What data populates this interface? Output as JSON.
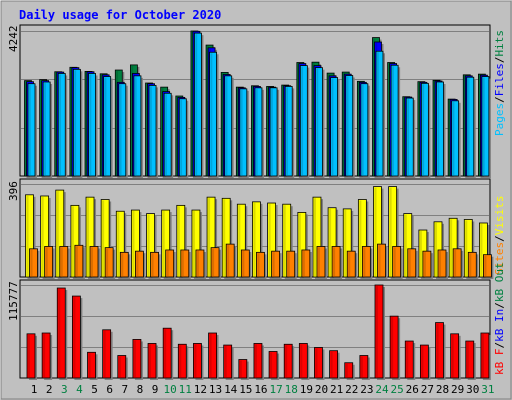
{
  "title": "Daily usage for October 2020",
  "colors": {
    "background": "#c0c0c0",
    "title": "#0000ff",
    "hits": "#008040",
    "files": "#0000ff",
    "pages": "#00c0ff",
    "visits": "#ffff00",
    "sites": "#ff8000",
    "kb_in": "#00c0ff",
    "kb_out": "#008040",
    "kb_f": "#ff0000",
    "normal_day": "#000000",
    "weekend_day": "#008040",
    "today_day": "#0000ff"
  },
  "chart_data": [
    {
      "type": "bar",
      "title": "Daily usage for October 2020",
      "panel": "hits-files-pages",
      "y_max_label": "4242",
      "ylim": [
        0,
        4242
      ],
      "legend": [
        "Pages",
        "Files",
        "Hits"
      ],
      "legend_separator": "/",
      "legend_placement": "right",
      "categories": [
        "1",
        "2",
        "3",
        "4",
        "5",
        "6",
        "7",
        "8",
        "9",
        "10",
        "11",
        "12",
        "13",
        "14",
        "15",
        "16",
        "17",
        "18",
        "19",
        "20",
        "21",
        "22",
        "23",
        "24",
        "25",
        "26",
        "27",
        "28",
        "29",
        "30",
        "31"
      ],
      "series": [
        {
          "name": "Hits",
          "values": [
            2790,
            2820,
            3050,
            3180,
            3060,
            2990,
            3100,
            3250,
            2720,
            2600,
            2340,
            4242,
            3830,
            3030,
            2600,
            2640,
            2620,
            2660,
            3320,
            3330,
            3010,
            3040,
            2770,
            4050,
            3320,
            2320,
            2760,
            2800,
            2250,
            2960,
            2980
          ]
        },
        {
          "name": "Files",
          "values": [
            2760,
            2790,
            3040,
            3170,
            3050,
            2960,
            2740,
            3000,
            2700,
            2470,
            2300,
            4232,
            3750,
            2970,
            2580,
            2620,
            2600,
            2640,
            3290,
            3230,
            2930,
            2980,
            2740,
            3920,
            3290,
            2310,
            2740,
            2780,
            2240,
            2930,
            2950
          ]
        },
        {
          "name": "Pages",
          "values": [
            2700,
            2750,
            3000,
            3120,
            3000,
            2910,
            2700,
            2930,
            2650,
            2420,
            2260,
            4180,
            3620,
            2930,
            2550,
            2580,
            2580,
            2620,
            3230,
            3170,
            2880,
            2940,
            2700,
            3650,
            3240,
            2280,
            2710,
            2750,
            2200,
            2890,
            2910
          ]
        }
      ]
    },
    {
      "type": "bar",
      "panel": "visits-sites",
      "y_max_label": "396",
      "ylim": [
        0,
        396
      ],
      "legend": [
        "Visits",
        "Sites"
      ],
      "legend_separator": "/",
      "legend_placement": "right",
      "categories": [
        "1",
        "2",
        "3",
        "4",
        "5",
        "6",
        "7",
        "8",
        "9",
        "10",
        "11",
        "12",
        "13",
        "14",
        "15",
        "16",
        "17",
        "18",
        "19",
        "20",
        "21",
        "22",
        "23",
        "24",
        "25",
        "26",
        "27",
        "28",
        "29",
        "30",
        "31"
      ],
      "series": [
        {
          "name": "Visits",
          "values": [
            350,
            345,
            370,
            305,
            340,
            330,
            280,
            285,
            270,
            285,
            305,
            285,
            340,
            335,
            310,
            320,
            315,
            310,
            275,
            340,
            295,
            290,
            330,
            385,
            385,
            270,
            200,
            235,
            250,
            245,
            230
          ]
        },
        {
          "name": "Sites",
          "values": [
            120,
            130,
            130,
            135,
            130,
            125,
            105,
            110,
            105,
            115,
            115,
            115,
            125,
            140,
            115,
            105,
            110,
            110,
            115,
            130,
            130,
            110,
            130,
            140,
            130,
            120,
            110,
            115,
            120,
            105,
            95
          ]
        }
      ]
    },
    {
      "type": "bar",
      "panel": "kbytes",
      "y_max_label": "115777",
      "ylim": [
        0,
        115777
      ],
      "legend": [
        "kB F",
        "kB In",
        "kB Out"
      ],
      "legend_separator": "/",
      "legend_placement": "right",
      "categories": [
        "1",
        "2",
        "3",
        "4",
        "5",
        "6",
        "7",
        "8",
        "9",
        "10",
        "11",
        "12",
        "13",
        "14",
        "15",
        "16",
        "17",
        "18",
        "19",
        "20",
        "21",
        "22",
        "23",
        "24",
        "25",
        "26",
        "27",
        "28",
        "29",
        "30",
        "31"
      ],
      "series": [
        {
          "name": "kB F",
          "values": [
            55000,
            56000,
            112000,
            102000,
            32000,
            60000,
            28000,
            48000,
            43000,
            62000,
            42000,
            43000,
            56000,
            41000,
            23000,
            43000,
            33000,
            42000,
            43000,
            38000,
            34000,
            19000,
            28000,
            115777,
            77000,
            46000,
            41000,
            69000,
            55000,
            46000,
            56000
          ]
        }
      ]
    }
  ],
  "day_labels": [
    {
      "label": "1",
      "type": "normal"
    },
    {
      "label": "2",
      "type": "normal"
    },
    {
      "label": "3",
      "type": "weekend"
    },
    {
      "label": "4",
      "type": "weekend"
    },
    {
      "label": "5",
      "type": "normal"
    },
    {
      "label": "6",
      "type": "normal"
    },
    {
      "label": "7",
      "type": "normal"
    },
    {
      "label": "8",
      "type": "normal"
    },
    {
      "label": "9",
      "type": "normal"
    },
    {
      "label": "10",
      "type": "weekend"
    },
    {
      "label": "11",
      "type": "weekend"
    },
    {
      "label": "12",
      "type": "normal"
    },
    {
      "label": "13",
      "type": "normal"
    },
    {
      "label": "14",
      "type": "normal"
    },
    {
      "label": "15",
      "type": "normal"
    },
    {
      "label": "16",
      "type": "normal"
    },
    {
      "label": "17",
      "type": "weekend"
    },
    {
      "label": "18",
      "type": "weekend"
    },
    {
      "label": "19",
      "type": "normal"
    },
    {
      "label": "20",
      "type": "normal"
    },
    {
      "label": "21",
      "type": "normal"
    },
    {
      "label": "22",
      "type": "normal"
    },
    {
      "label": "23",
      "type": "normal"
    },
    {
      "label": "24",
      "type": "weekend"
    },
    {
      "label": "25",
      "type": "weekend"
    },
    {
      "label": "26",
      "type": "normal"
    },
    {
      "label": "27",
      "type": "normal"
    },
    {
      "label": "28",
      "type": "normal"
    },
    {
      "label": "29",
      "type": "normal"
    },
    {
      "label": "30",
      "type": "normal"
    },
    {
      "label": "31",
      "type": "weekend"
    }
  ]
}
